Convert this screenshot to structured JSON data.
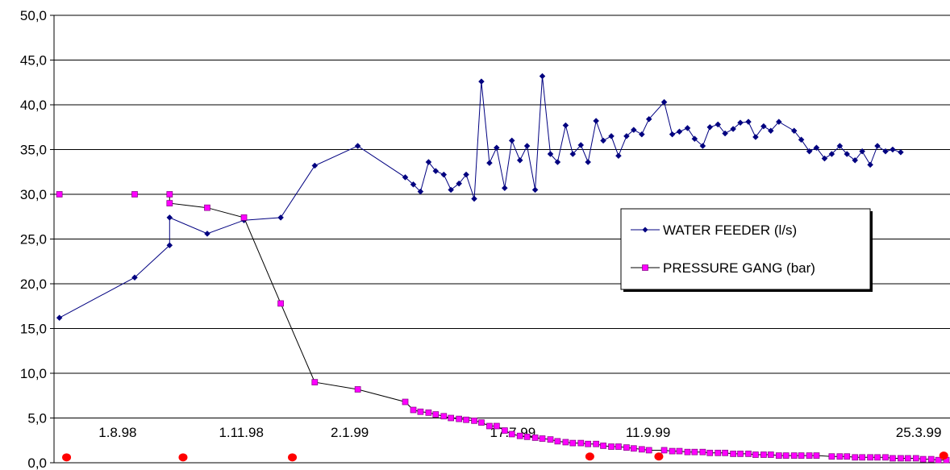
{
  "chart_data": {
    "type": "line",
    "ylim": [
      0,
      50
    ],
    "xlim": [
      0,
      100
    ],
    "y_ticks": [
      "0,0",
      "5,0",
      "10,0",
      "15,0",
      "20,0",
      "25,0",
      "30,0",
      "35,0",
      "40,0",
      "45,0",
      "50,0"
    ],
    "grid": true,
    "legend_position": "right",
    "date_labels": [
      {
        "text": "1.8.98",
        "x": 7.1
      },
      {
        "text": "1.11.98",
        "x": 20.9
      },
      {
        "text": "2.1.99",
        "x": 33.0
      },
      {
        "text": "17.7.99",
        "x": 51.2
      },
      {
        "text": "11.9.99",
        "x": 66.3
      },
      {
        "text": "25.3.99",
        "x": 96.5
      }
    ],
    "markers": [
      {
        "x": 1.4,
        "y": 0.6
      },
      {
        "x": 14.4,
        "y": 0.6
      },
      {
        "x": 26.6,
        "y": 0.6
      },
      {
        "x": 59.8,
        "y": 0.7
      },
      {
        "x": 67.5,
        "y": 0.7
      },
      {
        "x": 99.3,
        "y": 0.8
      }
    ],
    "series": [
      {
        "name": "WATER FEEDER (l/s)",
        "color": "#000080",
        "marker": "diamond",
        "points": [
          [
            0.6,
            16.2
          ],
          [
            9.0,
            20.7
          ],
          [
            12.9,
            24.3
          ],
          [
            12.9,
            27.4
          ],
          [
            17.1,
            25.6
          ],
          [
            21.2,
            27.1
          ],
          [
            25.3,
            27.4
          ],
          [
            29.1,
            33.2
          ],
          [
            33.9,
            35.4
          ],
          [
            39.2,
            31.9
          ],
          [
            40.1,
            31.1
          ],
          [
            40.9,
            30.3
          ],
          [
            41.8,
            33.6
          ],
          [
            42.6,
            32.6
          ],
          [
            43.5,
            32.2
          ],
          [
            44.3,
            30.5
          ],
          [
            45.2,
            31.2
          ],
          [
            46.0,
            32.2
          ],
          [
            46.9,
            29.5
          ],
          [
            47.7,
            42.6
          ],
          [
            48.6,
            33.5
          ],
          [
            49.4,
            35.2
          ],
          [
            50.3,
            30.7
          ],
          [
            51.1,
            36.0
          ],
          [
            52.0,
            33.8
          ],
          [
            52.8,
            35.4
          ],
          [
            53.7,
            30.5
          ],
          [
            54.5,
            43.2
          ],
          [
            55.4,
            34.5
          ],
          [
            56.2,
            33.6
          ],
          [
            57.1,
            37.7
          ],
          [
            57.9,
            34.5
          ],
          [
            58.8,
            35.5
          ],
          [
            59.6,
            33.6
          ],
          [
            60.5,
            38.2
          ],
          [
            61.3,
            36.0
          ],
          [
            62.2,
            36.5
          ],
          [
            63.0,
            34.3
          ],
          [
            63.9,
            36.5
          ],
          [
            64.7,
            37.2
          ],
          [
            65.6,
            36.7
          ],
          [
            66.4,
            38.4
          ],
          [
            68.1,
            40.3
          ],
          [
            69.0,
            36.7
          ],
          [
            69.8,
            37.0
          ],
          [
            70.7,
            37.4
          ],
          [
            71.5,
            36.2
          ],
          [
            72.4,
            35.4
          ],
          [
            73.2,
            37.5
          ],
          [
            74.1,
            37.8
          ],
          [
            74.9,
            36.8
          ],
          [
            75.8,
            37.3
          ],
          [
            76.6,
            38.0
          ],
          [
            77.5,
            38.1
          ],
          [
            78.3,
            36.4
          ],
          [
            79.2,
            37.6
          ],
          [
            80.0,
            37.1
          ],
          [
            80.9,
            38.1
          ],
          [
            82.6,
            37.1
          ],
          [
            83.4,
            36.1
          ],
          [
            84.3,
            34.8
          ],
          [
            85.1,
            35.2
          ],
          [
            86.0,
            34.0
          ],
          [
            86.8,
            34.5
          ],
          [
            87.7,
            35.4
          ],
          [
            88.5,
            34.5
          ],
          [
            89.4,
            33.8
          ],
          [
            90.2,
            34.8
          ],
          [
            91.1,
            33.3
          ],
          [
            91.9,
            35.4
          ],
          [
            92.8,
            34.8
          ],
          [
            93.6,
            35.0
          ],
          [
            94.5,
            34.7
          ]
        ]
      },
      {
        "name": "PRESSURE GANG (bar)",
        "color": "#000000",
        "marker_color": "#ff00ff",
        "marker": "square",
        "points": [
          [
            0.6,
            30.0
          ],
          [
            9.0,
            30.0
          ],
          [
            12.9,
            30.0
          ],
          [
            12.9,
            29.0
          ],
          [
            17.1,
            28.5
          ],
          [
            21.2,
            27.4
          ],
          [
            25.3,
            17.8
          ],
          [
            29.1,
            9.0
          ],
          [
            33.9,
            8.2
          ],
          [
            39.2,
            6.8
          ],
          [
            40.1,
            5.9
          ],
          [
            40.9,
            5.7
          ],
          [
            41.8,
            5.6
          ],
          [
            42.6,
            5.4
          ],
          [
            43.5,
            5.2
          ],
          [
            44.3,
            5.0
          ],
          [
            45.2,
            4.9
          ],
          [
            46.0,
            4.8
          ],
          [
            46.9,
            4.7
          ],
          [
            47.7,
            4.5
          ],
          [
            48.6,
            4.1
          ],
          [
            49.4,
            4.1
          ],
          [
            50.3,
            3.6
          ],
          [
            51.1,
            3.2
          ],
          [
            52.0,
            3.0
          ],
          [
            52.8,
            2.9
          ],
          [
            53.7,
            2.8
          ],
          [
            54.5,
            2.7
          ],
          [
            55.4,
            2.6
          ],
          [
            56.2,
            2.4
          ],
          [
            57.1,
            2.3
          ],
          [
            57.9,
            2.2
          ],
          [
            58.8,
            2.2
          ],
          [
            59.6,
            2.1
          ],
          [
            60.5,
            2.1
          ],
          [
            61.3,
            1.9
          ],
          [
            62.2,
            1.8
          ],
          [
            63.0,
            1.8
          ],
          [
            63.9,
            1.7
          ],
          [
            64.7,
            1.6
          ],
          [
            65.6,
            1.5
          ],
          [
            66.4,
            1.4
          ],
          [
            68.1,
            1.4
          ],
          [
            69.0,
            1.3
          ],
          [
            69.8,
            1.3
          ],
          [
            70.7,
            1.2
          ],
          [
            71.5,
            1.2
          ],
          [
            72.4,
            1.2
          ],
          [
            73.2,
            1.1
          ],
          [
            74.1,
            1.1
          ],
          [
            74.9,
            1.1
          ],
          [
            75.8,
            1.0
          ],
          [
            76.6,
            1.0
          ],
          [
            77.5,
            1.0
          ],
          [
            78.3,
            0.9
          ],
          [
            79.2,
            0.9
          ],
          [
            80.0,
            0.9
          ],
          [
            80.9,
            0.8
          ],
          [
            81.7,
            0.8
          ],
          [
            82.6,
            0.8
          ],
          [
            83.4,
            0.8
          ],
          [
            84.3,
            0.8
          ],
          [
            85.1,
            0.8
          ],
          [
            86.8,
            0.7
          ],
          [
            87.7,
            0.7
          ],
          [
            88.5,
            0.7
          ],
          [
            89.4,
            0.6
          ],
          [
            90.2,
            0.6
          ],
          [
            91.1,
            0.6
          ],
          [
            91.9,
            0.6
          ],
          [
            92.8,
            0.6
          ],
          [
            93.6,
            0.5
          ],
          [
            94.5,
            0.5
          ],
          [
            95.3,
            0.5
          ],
          [
            96.2,
            0.5
          ],
          [
            97.0,
            0.4
          ],
          [
            97.9,
            0.4
          ],
          [
            98.7,
            0.3
          ],
          [
            99.6,
            0.3
          ]
        ]
      }
    ]
  }
}
